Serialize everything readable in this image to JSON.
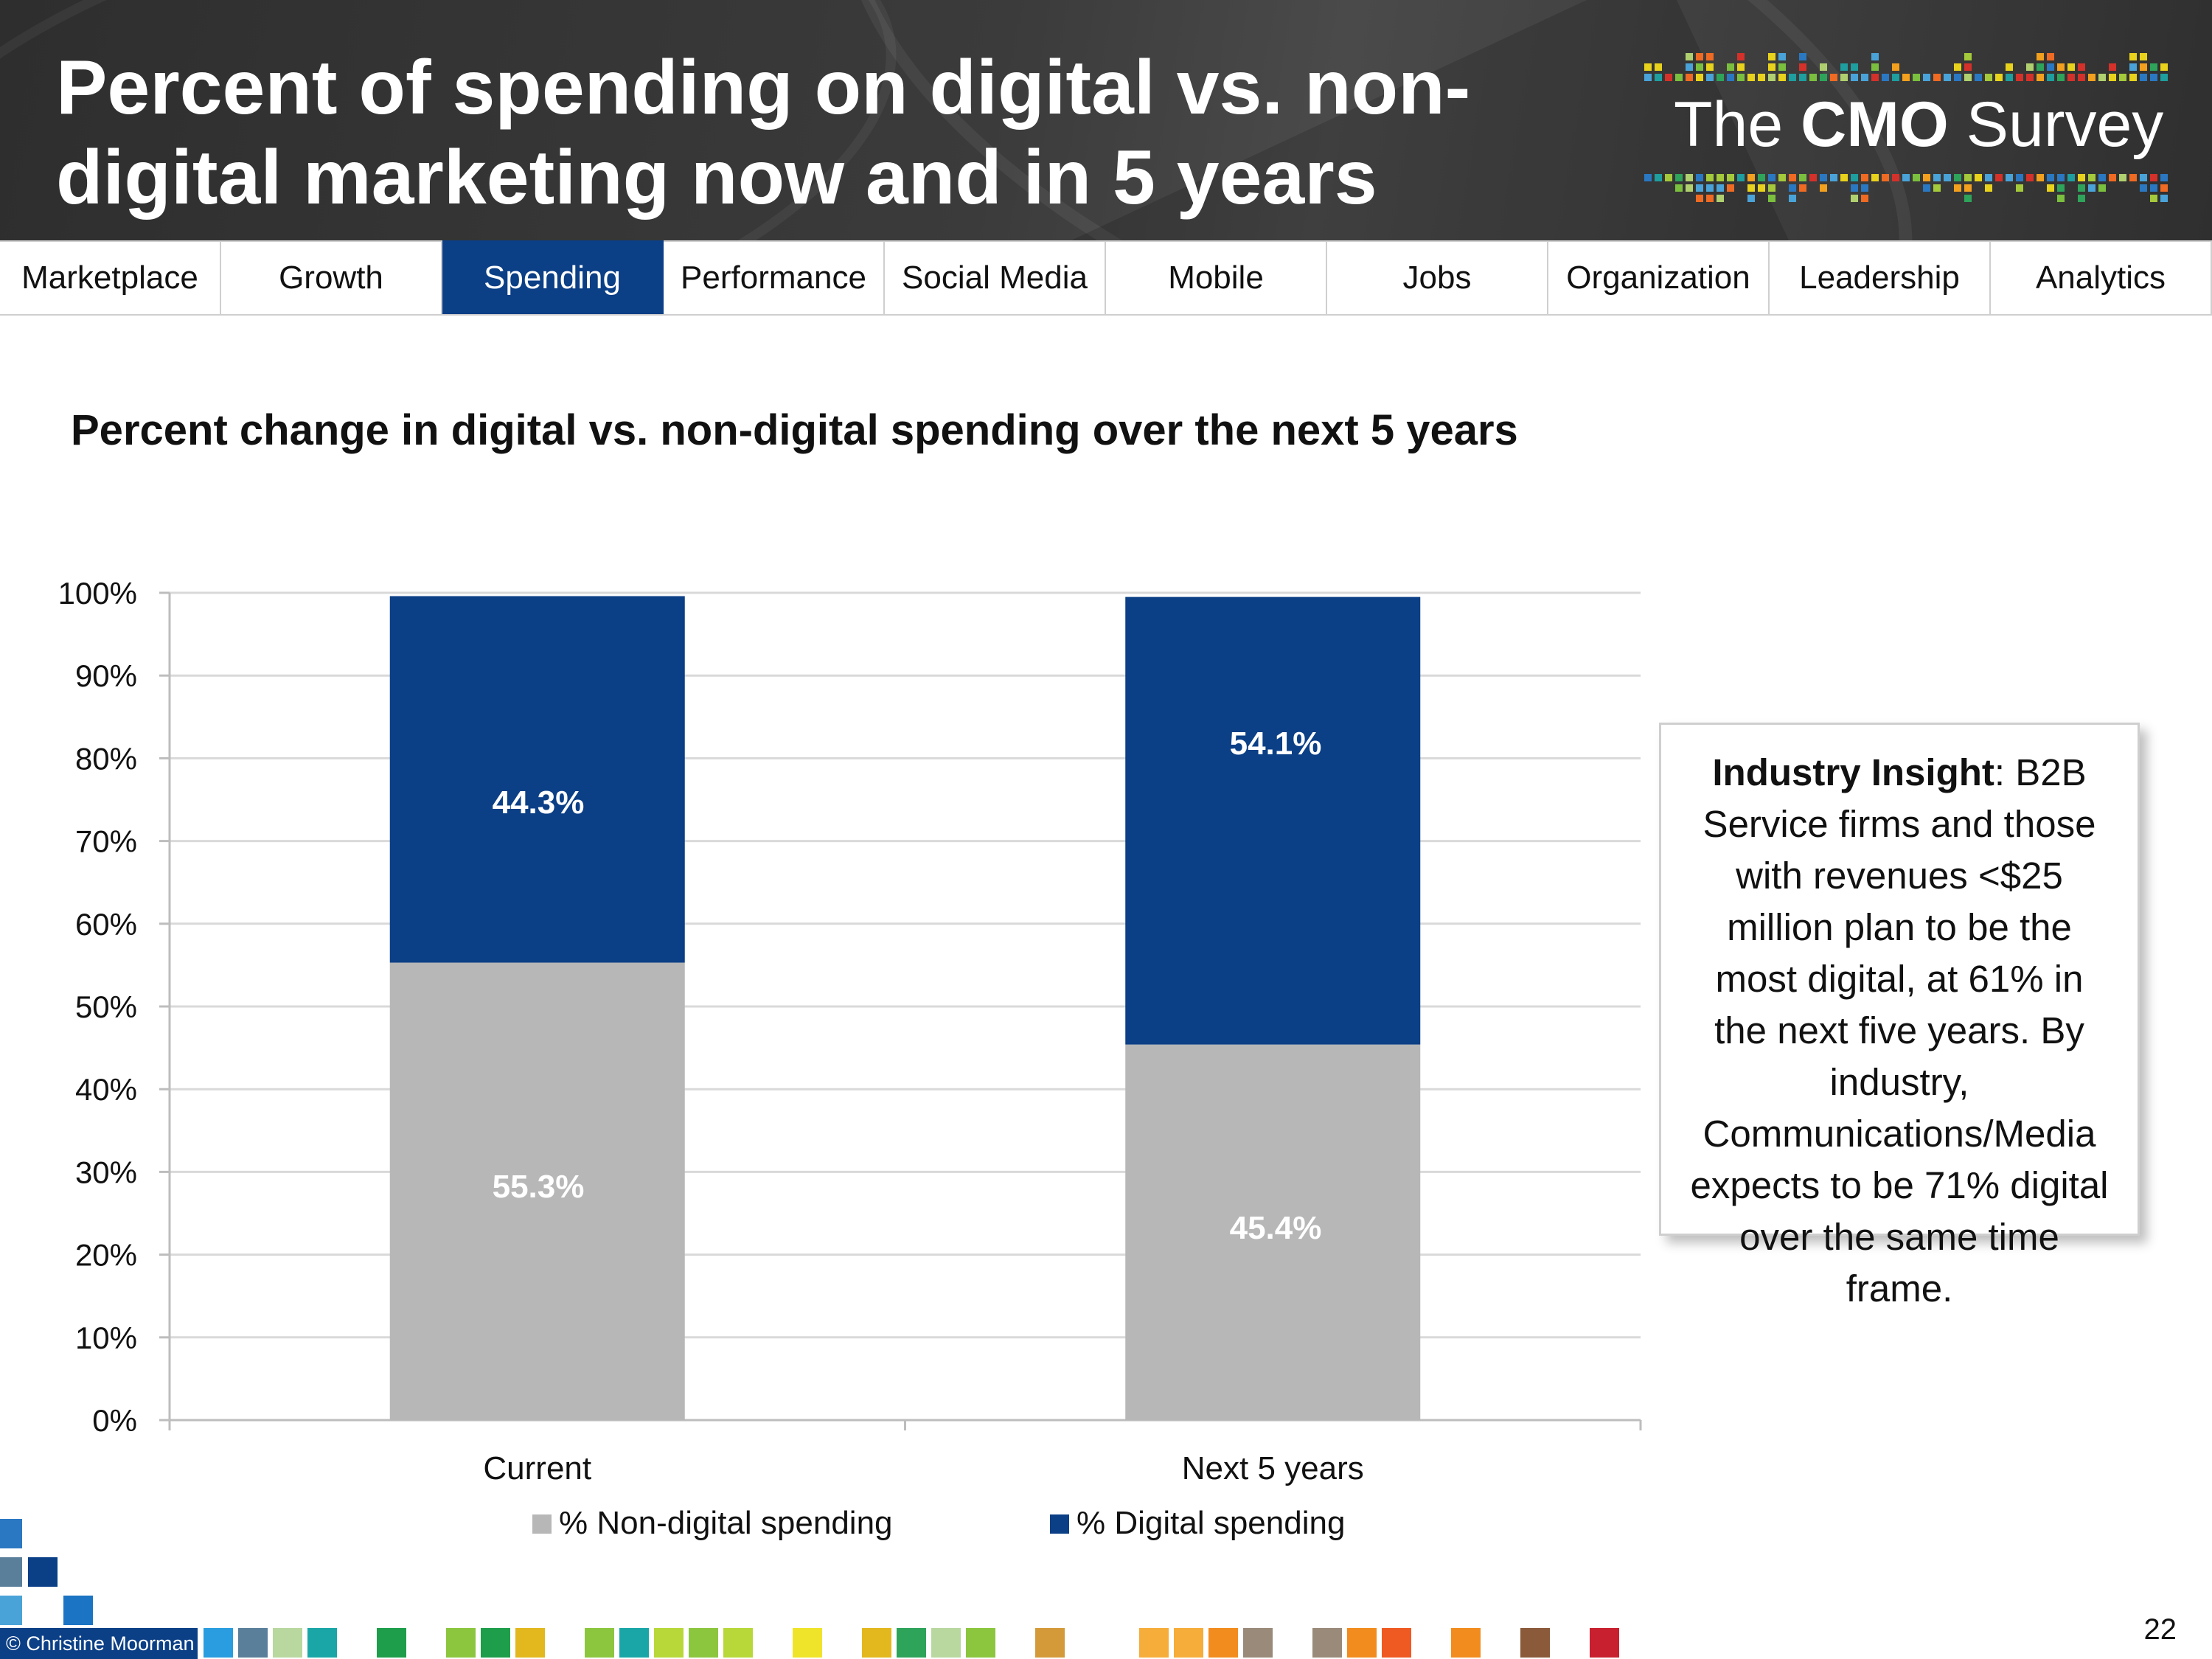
{
  "header": {
    "title": "Percent of spending on digital vs. non-digital marketing now and in 5 years",
    "logo_prefix": "The ",
    "logo_bold": "CMO",
    "logo_suffix": " Survey"
  },
  "nav": {
    "items": [
      {
        "label": "Marketplace"
      },
      {
        "label": "Growth"
      },
      {
        "label": "Spending",
        "active": true
      },
      {
        "label": "Performance"
      },
      {
        "label": "Social Media"
      },
      {
        "label": "Mobile"
      },
      {
        "label": "Jobs"
      },
      {
        "label": "Organization"
      },
      {
        "label": "Leadership"
      },
      {
        "label": "Analytics"
      }
    ]
  },
  "subtitle": "Percent change in digital vs. non-digital spending over the next 5 years",
  "chart_data": {
    "type": "bar",
    "stacked": true,
    "categories": [
      "Current",
      "Next 5 years"
    ],
    "series": [
      {
        "name": "% Non-digital spending",
        "values": [
          55.3,
          45.4
        ],
        "color": "#b7b7b7"
      },
      {
        "name": "% Digital spending",
        "values": [
          44.3,
          54.1
        ],
        "color": "#0b3f86"
      }
    ],
    "data_labels": [
      [
        "55.3%",
        "45.4%"
      ],
      [
        "44.3%",
        "54.1%"
      ]
    ],
    "ylim": [
      0,
      100
    ],
    "yticks": [
      "0%",
      "10%",
      "20%",
      "30%",
      "40%",
      "50%",
      "60%",
      "70%",
      "80%",
      "90%",
      "100%"
    ],
    "grid": true,
    "legend": "bottom"
  },
  "insight": {
    "heading": "Industry Insight",
    "body": ": B2B Service firms and those with revenues <$25 million plan to be the most digital, at 61% in the next five years. By industry, Communications/Media expects to be 71% digital over the same time frame."
  },
  "footer": {
    "copyright": "© Christine Moorman",
    "page_number": "22"
  },
  "colors": {
    "accent": "#0b3f86",
    "non_digital": "#b7b7b7"
  }
}
